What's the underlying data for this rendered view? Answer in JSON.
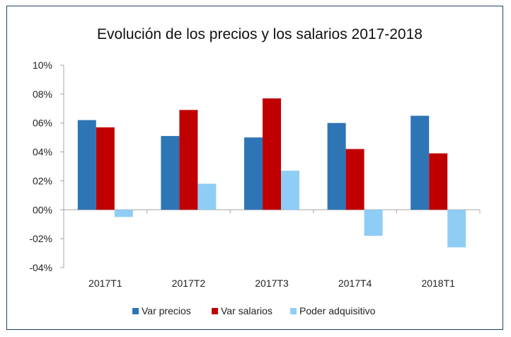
{
  "colors": {
    "precios": "#2e75b6",
    "salarios": "#c00000",
    "poder": "#8fcdf5",
    "axis": "#a6a6a6",
    "frame": "#1f3f6b"
  },
  "chart_data": {
    "type": "bar",
    "title": "Evolución de los precios y los salarios 2017-2018",
    "xlabel": "",
    "ylabel": "",
    "categories": [
      "2017T1",
      "2017T2",
      "2017T3",
      "2017T4",
      "2018T1"
    ],
    "series": [
      {
        "name": "Var precios",
        "values": [
          0.062,
          0.051,
          0.05,
          0.06,
          0.065
        ],
        "color": "#2e75b6"
      },
      {
        "name": "Var salarios",
        "values": [
          0.057,
          0.069,
          0.077,
          0.042,
          0.039
        ],
        "color": "#c00000"
      },
      {
        "name": "Poder adquisitivo",
        "values": [
          -0.005,
          0.018,
          0.027,
          -0.018,
          -0.026
        ],
        "color": "#8fcdf5"
      }
    ],
    "ylim": [
      -0.04,
      0.1
    ],
    "yticks": [
      0.1,
      0.08,
      0.06,
      0.04,
      0.02,
      0.0,
      -0.02,
      -0.04
    ],
    "ytick_labels": [
      "10%",
      "08%",
      "06%",
      "04%",
      "02%",
      "00%",
      "-02%",
      "-04%"
    ],
    "grid": false,
    "legend_position": "bottom"
  }
}
